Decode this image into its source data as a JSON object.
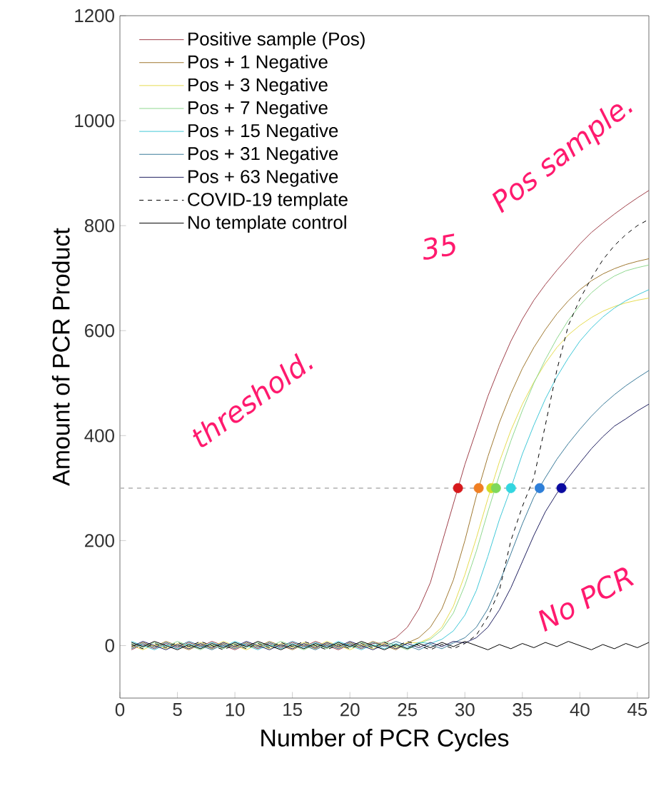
{
  "chart_data": {
    "type": "line",
    "xlabel": "Number of PCR Cycles",
    "ylabel": "Amount of PCR Product",
    "x": [
      1,
      2,
      3,
      4,
      5,
      6,
      7,
      8,
      9,
      10,
      11,
      12,
      13,
      14,
      15,
      16,
      17,
      18,
      19,
      20,
      21,
      22,
      23,
      24,
      25,
      26,
      27,
      28,
      29,
      30,
      31,
      32,
      33,
      34,
      35,
      36,
      37,
      38,
      39,
      40,
      41,
      42,
      43,
      44,
      45,
      46
    ],
    "series": [
      {
        "name": "Positive sample (Pos)",
        "color": "#a0404a",
        "values": [
          -8,
          2,
          -6,
          4,
          -4,
          6,
          -2,
          8,
          0,
          -8,
          2,
          -6,
          4,
          -4,
          6,
          -2,
          8,
          0,
          -8,
          2,
          -6,
          4,
          5,
          15,
          35,
          70,
          120,
          195,
          270,
          345,
          410,
          475,
          530,
          580,
          622,
          658,
          688,
          715,
          740,
          765,
          787,
          805,
          822,
          838,
          853,
          867
        ]
      },
      {
        "name": "Pos + 1 Negative",
        "color": "#a07830",
        "values": [
          -4,
          6,
          -2,
          8,
          0,
          -8,
          2,
          -6,
          4,
          -4,
          6,
          -2,
          8,
          0,
          -8,
          2,
          -6,
          4,
          -4,
          6,
          -2,
          8,
          0,
          -8,
          5,
          15,
          35,
          70,
          125,
          200,
          285,
          360,
          425,
          480,
          528,
          568,
          602,
          632,
          657,
          678,
          695,
          708,
          718,
          726,
          732,
          737
        ]
      },
      {
        "name": "Pos + 3 Negative",
        "color": "#e6dc50",
        "values": [
          0,
          -8,
          2,
          -6,
          4,
          -4,
          6,
          -2,
          8,
          0,
          -8,
          2,
          -6,
          4,
          -4,
          6,
          -2,
          8,
          0,
          -8,
          2,
          -6,
          4,
          -4,
          6,
          5,
          15,
          35,
          75,
          135,
          205,
          280,
          350,
          410,
          460,
          502,
          538,
          568,
          592,
          610,
          625,
          637,
          646,
          653,
          658,
          662
        ]
      },
      {
        "name": "Pos + 7 Negative",
        "color": "#8fd88f",
        "values": [
          4,
          -4,
          6,
          -2,
          8,
          0,
          -8,
          2,
          -6,
          4,
          -4,
          6,
          -2,
          8,
          0,
          -8,
          2,
          -6,
          4,
          -4,
          6,
          -2,
          8,
          0,
          -8,
          4,
          12,
          30,
          62,
          115,
          180,
          255,
          325,
          390,
          448,
          500,
          545,
          585,
          620,
          648,
          672,
          690,
          704,
          714,
          720,
          725
        ]
      },
      {
        "name": "Pos + 15 Negative",
        "color": "#40c8d8",
        "values": [
          8,
          0,
          -8,
          2,
          -6,
          4,
          -4,
          6,
          -2,
          8,
          0,
          -8,
          2,
          -6,
          4,
          -4,
          6,
          -2,
          8,
          0,
          -8,
          2,
          -6,
          4,
          -4,
          6,
          4,
          12,
          28,
          58,
          105,
          170,
          240,
          300,
          365,
          420,
          470,
          512,
          548,
          580,
          605,
          626,
          643,
          657,
          668,
          678
        ]
      },
      {
        "name": "Pos + 31 Negative",
        "color": "#3a7a9a",
        "values": [
          -6,
          4,
          -4,
          6,
          -2,
          8,
          0,
          -8,
          2,
          -6,
          4,
          -4,
          6,
          -2,
          8,
          0,
          -8,
          2,
          -6,
          4,
          -4,
          6,
          -2,
          8,
          0,
          -8,
          2,
          -6,
          5,
          15,
          35,
          70,
          120,
          175,
          232,
          283,
          320,
          355,
          385,
          412,
          437,
          459,
          478,
          495,
          510,
          524
        ]
      },
      {
        "name": "Pos + 63 Negative",
        "color": "#202060",
        "values": [
          -2,
          8,
          0,
          -8,
          2,
          -6,
          4,
          -4,
          6,
          -2,
          8,
          0,
          -8,
          2,
          -6,
          4,
          -4,
          6,
          -2,
          8,
          0,
          -8,
          2,
          -6,
          4,
          -4,
          6,
          -2,
          8,
          5,
          15,
          35,
          68,
          110,
          160,
          210,
          255,
          290,
          320,
          348,
          375,
          398,
          418,
          432,
          447,
          460
        ]
      },
      {
        "name": "COVID-19 template",
        "color": "#000000",
        "line_style": "dashed",
        "values": [
          2,
          -6,
          4,
          -4,
          6,
          -2,
          8,
          0,
          -8,
          2,
          -6,
          4,
          -4,
          6,
          -2,
          8,
          0,
          -8,
          2,
          -6,
          4,
          -4,
          6,
          -2,
          8,
          0,
          -8,
          2,
          -6,
          4,
          20,
          55,
          105,
          200,
          265,
          320,
          420,
          525,
          610,
          660,
          700,
          735,
          762,
          783,
          800,
          812
        ]
      },
      {
        "name": "No template control",
        "color": "#000000",
        "values": [
          6,
          -2,
          8,
          0,
          -8,
          2,
          -6,
          4,
          -4,
          6,
          -2,
          8,
          0,
          -8,
          2,
          -6,
          4,
          -4,
          6,
          -2,
          8,
          0,
          -8,
          2,
          -6,
          4,
          -4,
          6,
          -2,
          8,
          0,
          -8,
          2,
          -6,
          4,
          -4,
          6,
          -2,
          8,
          0,
          -8,
          2,
          -6,
          4,
          -4,
          6
        ]
      },
      {
        "type": "scatter",
        "x": [
          29.4,
          31.2,
          32.3,
          32.7,
          34.0,
          36.5,
          38.4
        ],
        "values": [
          300,
          300,
          300,
          300,
          300,
          300,
          300
        ],
        "colors": [
          "#d7191c",
          "#f07f23",
          "#d0dc28",
          "#7fd85a",
          "#33d6e0",
          "#2e7fd8",
          "#0a0aa0"
        ]
      }
    ],
    "xlim": [
      0,
      46
    ],
    "ylim": [
      -100,
      1200
    ],
    "xticks": [
      0,
      5,
      10,
      15,
      20,
      25,
      30,
      35,
      40,
      45
    ],
    "yticks": [
      0,
      200,
      400,
      600,
      800,
      1000,
      1200
    ],
    "ref_lines": [
      {
        "axis": "y",
        "value": 300,
        "color": "#bbbbbb",
        "line_style": "dashed"
      }
    ],
    "legend": "top left",
    "grid": false,
    "line_style": "solid",
    "annotations": [
      "threshold.",
      "Pos sample.",
      "35",
      "No PCR"
    ]
  }
}
